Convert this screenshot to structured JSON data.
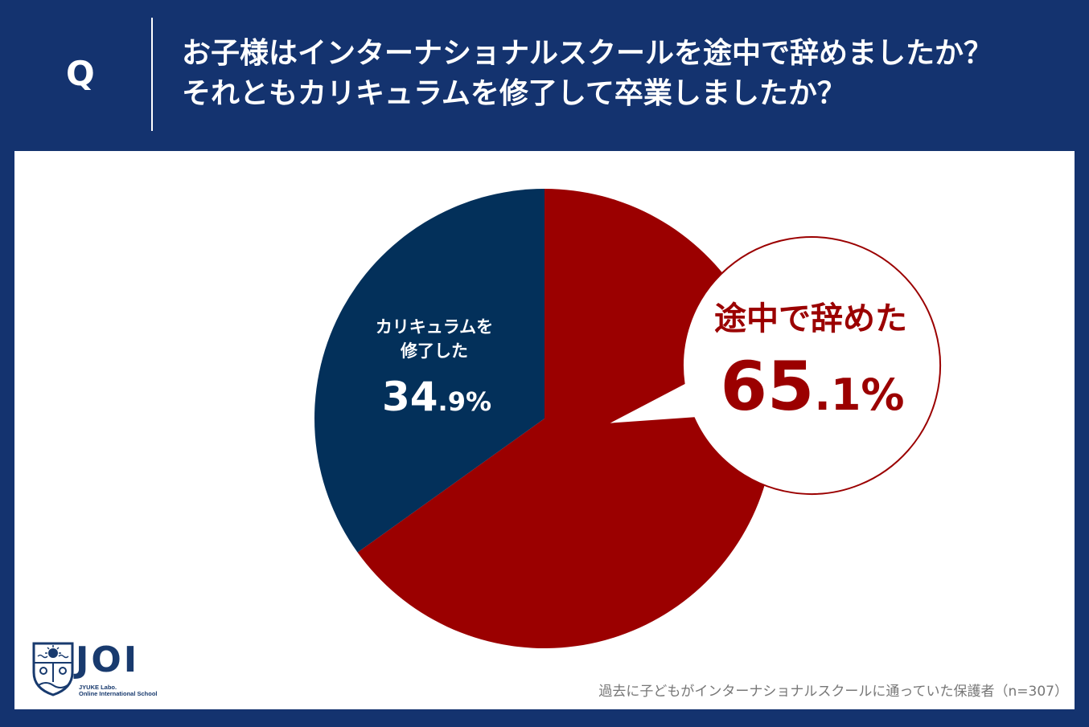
{
  "header": {
    "q_label": "Q",
    "question_line1": "お子様はインターナショナルスクールを途中で辞めましたか？",
    "question_line2": "それともカリキュラムを修了して卒業しましたか？"
  },
  "chart_data": {
    "type": "pie",
    "slices": [
      {
        "label": "途中で辞めた",
        "value": 65.1,
        "value_int": "65",
        "value_dec": ".1%",
        "color": "#9b0000"
      },
      {
        "label_line1": "カリキュラムを",
        "label_line2": "修了した",
        "value": 34.9,
        "value_int": "34",
        "value_dec": ".9%",
        "color": "#03305a"
      }
    ],
    "start_angle": "12 o'clock, clockwise"
  },
  "logo": {
    "name": "JOI",
    "sub_line1": "JYUKE Labo.",
    "sub_line2": "Online International School"
  },
  "footnote": "過去に子どもがインターナショナルスクールに通っていた保護者（n=307）",
  "colors": {
    "background": "#14336f",
    "panel": "#ffffff",
    "accent_red": "#9b0000",
    "navy": "#03305a"
  }
}
